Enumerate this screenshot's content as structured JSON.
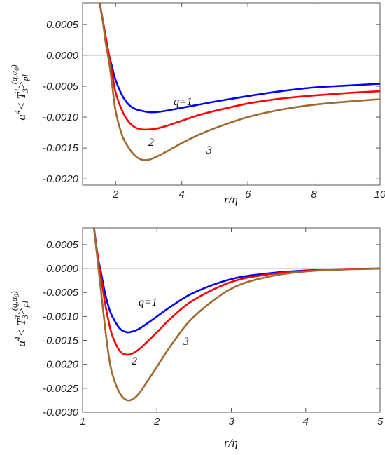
{
  "chart_data": [
    {
      "type": "line",
      "xlabel": "r/η",
      "ylabel_main": "a",
      "ylabel_sup": "4",
      "ylabel_mid": "< T",
      "ylabel_sub": "3",
      "ylabel_sup2": "3",
      "ylabel_end": ">",
      "ylabel_pl": "pl",
      "ylabel_q": "(q,α",
      "ylabel_q0": "0",
      "ylabel_qend": ")",
      "xlim": [
        1.0,
        10.0
      ],
      "ylim": [
        -0.0021,
        0.00085
      ],
      "x_ticks": [
        2,
        4,
        6,
        8,
        10
      ],
      "y_ticks": [
        0.0005,
        0.0,
        -0.0005,
        -0.001,
        -0.0015,
        -0.002
      ],
      "x_tick_labels": [
        "2",
        "4",
        "6",
        "8",
        "10"
      ],
      "y_tick_labels": [
        "0.0005",
        "0.0000",
        "-0.0005",
        "-0.0010",
        "-0.0015",
        "-0.0020"
      ],
      "series": [
        {
          "label": "q=1",
          "color": "#0000ff",
          "x": [
            1.5,
            1.6,
            1.7,
            1.8,
            1.9,
            2.0,
            2.2,
            2.4,
            2.6,
            2.8,
            3.0,
            3.2,
            3.5,
            4.0,
            4.5,
            5.0,
            6.0,
            7.0,
            8.0,
            9.0,
            10.0
          ],
          "y": [
            0.0009,
            0.0006,
            0.0003,
            0.0,
            -0.0002,
            -0.0004,
            -0.00065,
            -0.0008,
            -0.00087,
            -0.0009,
            -0.00092,
            -0.00092,
            -0.0009,
            -0.00085,
            -0.0008,
            -0.00075,
            -0.00066,
            -0.00058,
            -0.00052,
            -0.00049,
            -0.00046
          ]
        },
        {
          "label": "2",
          "color": "#ff0000",
          "x": [
            1.5,
            1.6,
            1.7,
            1.8,
            1.9,
            2.0,
            2.2,
            2.4,
            2.6,
            2.8,
            3.0,
            3.2,
            3.5,
            4.0,
            4.5,
            5.0,
            6.0,
            7.0,
            8.0,
            9.0,
            10.0
          ],
          "y": [
            0.0009,
            0.0006,
            0.0003,
            0.0,
            -0.0003,
            -0.0006,
            -0.0009,
            -0.00108,
            -0.00117,
            -0.0012,
            -0.0012,
            -0.00119,
            -0.00115,
            -0.00106,
            -0.00097,
            -0.0009,
            -0.00078,
            -0.0007,
            -0.00065,
            -0.00061,
            -0.00058
          ]
        },
        {
          "label": "3",
          "color": "#a0692f",
          "x": [
            1.5,
            1.6,
            1.7,
            1.8,
            1.9,
            2.0,
            2.2,
            2.4,
            2.6,
            2.8,
            3.0,
            3.2,
            3.5,
            4.0,
            4.5,
            5.0,
            6.0,
            7.0,
            8.0,
            9.0,
            10.0
          ],
          "y": [
            0.0009,
            0.0006,
            0.0002,
            -0.0001,
            -0.0005,
            -0.0009,
            -0.0013,
            -0.0015,
            -0.00163,
            -0.00169,
            -0.00169,
            -0.00165,
            -0.00157,
            -0.00142,
            -0.00129,
            -0.00118,
            -0.001,
            -0.00088,
            -0.0008,
            -0.00075,
            -0.00071
          ]
        }
      ]
    },
    {
      "type": "line",
      "xlabel": "r/η",
      "ylabel_main": "a",
      "ylabel_sup": "4",
      "ylabel_mid": "< T",
      "ylabel_sub": "3",
      "ylabel_sup2": "3",
      "ylabel_end": ">",
      "ylabel_pl": "pl",
      "ylabel_q": "(q,α",
      "ylabel_q0": "0",
      "ylabel_qend": ")",
      "xlim": [
        1.0,
        5.0
      ],
      "ylim": [
        -0.003,
        0.00085
      ],
      "x_ticks": [
        1,
        2,
        3,
        4,
        5
      ],
      "y_ticks": [
        0.0005,
        0.0,
        -0.0005,
        -0.001,
        -0.0015,
        -0.002,
        -0.0025,
        -0.003
      ],
      "x_tick_labels": [
        "1",
        "2",
        "3",
        "4",
        "5"
      ],
      "y_tick_labels": [
        "0.0005",
        "0.0000",
        "-0.0005",
        "-0.0010",
        "-0.0015",
        "-0.0020",
        "-0.0025",
        "-0.0030"
      ],
      "series": [
        {
          "label": "q=1",
          "color": "#0000ff",
          "x": [
            1.15,
            1.2,
            1.25,
            1.3,
            1.35,
            1.4,
            1.5,
            1.6,
            1.7,
            1.8,
            2.0,
            2.2,
            2.5,
            3.0,
            3.5,
            4.0,
            4.5,
            5.0
          ],
          "y": [
            0.0009,
            0.0003,
            -0.0001,
            -0.0005,
            -0.0008,
            -0.001,
            -0.00125,
            -0.00133,
            -0.0013,
            -0.00122,
            -0.001,
            -0.00078,
            -0.0005,
            -0.00022,
            -0.0001,
            -4e-05,
            -1e-05,
            0.0
          ]
        },
        {
          "label": "2",
          "color": "#ff0000",
          "x": [
            1.15,
            1.2,
            1.25,
            1.3,
            1.35,
            1.4,
            1.5,
            1.6,
            1.7,
            1.8,
            2.0,
            2.2,
            2.5,
            3.0,
            3.5,
            4.0,
            4.5,
            5.0
          ],
          "y": [
            0.0009,
            0.0003,
            -0.0002,
            -0.0007,
            -0.0011,
            -0.0014,
            -0.00172,
            -0.0018,
            -0.00175,
            -0.00163,
            -0.00133,
            -0.00102,
            -0.00065,
            -0.00028,
            -0.00012,
            -5e-05,
            -1e-05,
            0.0
          ]
        },
        {
          "label": "3",
          "color": "#a0692f",
          "x": [
            1.15,
            1.2,
            1.25,
            1.3,
            1.35,
            1.4,
            1.5,
            1.6,
            1.7,
            1.8,
            2.0,
            2.2,
            2.5,
            3.0,
            3.5,
            4.0,
            4.5,
            5.0
          ],
          "y": [
            0.0009,
            0.0002,
            -0.0005,
            -0.0012,
            -0.0018,
            -0.0022,
            -0.0026,
            -0.00275,
            -0.0027,
            -0.00252,
            -0.00205,
            -0.00158,
            -0.001,
            -0.00042,
            -0.00017,
            -6e-05,
            -2e-05,
            0.0
          ]
        }
      ]
    }
  ]
}
